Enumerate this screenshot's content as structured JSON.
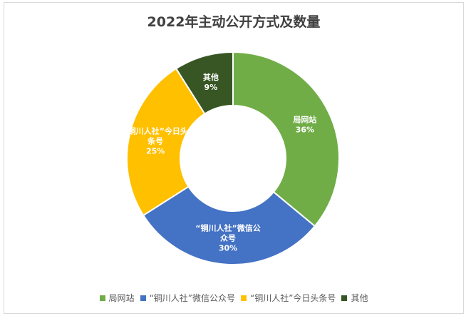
{
  "chart_data": {
    "type": "pie",
    "donut": true,
    "title": "2022年主动公开方式及数量",
    "series": [
      {
        "name": "局网站",
        "label_lines": [
          "局网站"
        ],
        "percent_label": "36%",
        "value": 36,
        "color": "#70ad47"
      },
      {
        "name": "“铜川人社”微信公众号",
        "label_lines": [
          "“铜川人社”微信公",
          "众号"
        ],
        "percent_label": "30%",
        "value": 30,
        "color": "#4472c4"
      },
      {
        "name": "“铜川人社”今日头条号",
        "label_lines": [
          "“铜川人社”今日头",
          "条号"
        ],
        "percent_label": "25%",
        "value": 25,
        "color": "#ffc000"
      },
      {
        "name": "其他",
        "label_lines": [
          "其他"
        ],
        "percent_label": "9%",
        "value": 9,
        "color": "#375623"
      }
    ],
    "legend_position": "bottom"
  }
}
